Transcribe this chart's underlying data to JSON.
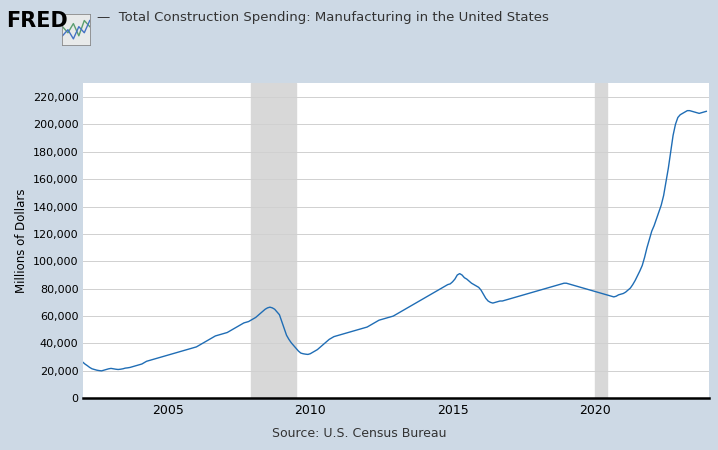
{
  "title": "Total Construction Spending: Manufacturing in the United States",
  "ylabel": "Millions of Dollars",
  "source": "Source: U.S. Census Bureau",
  "line_color": "#1f6db5",
  "background_color": "#cdd9e5",
  "plot_bg_color": "#ffffff",
  "recession_color": "#d8d8d8",
  "recession_bands": [
    [
      2007.917,
      2009.5
    ]
  ],
  "recession_band2": [
    [
      2020.0,
      2020.417
    ]
  ],
  "ylim": [
    0,
    230000
  ],
  "yticks": [
    0,
    20000,
    40000,
    60000,
    80000,
    100000,
    120000,
    140000,
    160000,
    180000,
    200000,
    220000
  ],
  "xlim_start": 2002.0,
  "xlim_end": 2024.0,
  "xtick_years": [
    2005,
    2010,
    2015,
    2020
  ],
  "data": {
    "dates": [
      2002.0,
      2002.083,
      2002.167,
      2002.25,
      2002.333,
      2002.417,
      2002.5,
      2002.583,
      2002.667,
      2002.75,
      2002.833,
      2002.917,
      2003.0,
      2003.083,
      2003.167,
      2003.25,
      2003.333,
      2003.417,
      2003.5,
      2003.583,
      2003.667,
      2003.75,
      2003.833,
      2003.917,
      2004.0,
      2004.083,
      2004.167,
      2004.25,
      2004.333,
      2004.417,
      2004.5,
      2004.583,
      2004.667,
      2004.75,
      2004.833,
      2004.917,
      2005.0,
      2005.083,
      2005.167,
      2005.25,
      2005.333,
      2005.417,
      2005.5,
      2005.583,
      2005.667,
      2005.75,
      2005.833,
      2005.917,
      2006.0,
      2006.083,
      2006.167,
      2006.25,
      2006.333,
      2006.417,
      2006.5,
      2006.583,
      2006.667,
      2006.75,
      2006.833,
      2006.917,
      2007.0,
      2007.083,
      2007.167,
      2007.25,
      2007.333,
      2007.417,
      2007.5,
      2007.583,
      2007.667,
      2007.75,
      2007.833,
      2007.917,
      2008.0,
      2008.083,
      2008.167,
      2008.25,
      2008.333,
      2008.417,
      2008.5,
      2008.583,
      2008.667,
      2008.75,
      2008.833,
      2008.917,
      2009.0,
      2009.083,
      2009.167,
      2009.25,
      2009.333,
      2009.417,
      2009.5,
      2009.583,
      2009.667,
      2009.75,
      2009.833,
      2009.917,
      2010.0,
      2010.083,
      2010.167,
      2010.25,
      2010.333,
      2010.417,
      2010.5,
      2010.583,
      2010.667,
      2010.75,
      2010.833,
      2010.917,
      2011.0,
      2011.083,
      2011.167,
      2011.25,
      2011.333,
      2011.417,
      2011.5,
      2011.583,
      2011.667,
      2011.75,
      2011.833,
      2011.917,
      2012.0,
      2012.083,
      2012.167,
      2012.25,
      2012.333,
      2012.417,
      2012.5,
      2012.583,
      2012.667,
      2012.75,
      2012.833,
      2012.917,
      2013.0,
      2013.083,
      2013.167,
      2013.25,
      2013.333,
      2013.417,
      2013.5,
      2013.583,
      2013.667,
      2013.75,
      2013.833,
      2013.917,
      2014.0,
      2014.083,
      2014.167,
      2014.25,
      2014.333,
      2014.417,
      2014.5,
      2014.583,
      2014.667,
      2014.75,
      2014.833,
      2014.917,
      2015.0,
      2015.083,
      2015.167,
      2015.25,
      2015.333,
      2015.417,
      2015.5,
      2015.583,
      2015.667,
      2015.75,
      2015.833,
      2015.917,
      2016.0,
      2016.083,
      2016.167,
      2016.25,
      2016.333,
      2016.417,
      2016.5,
      2016.583,
      2016.667,
      2016.75,
      2016.833,
      2016.917,
      2017.0,
      2017.083,
      2017.167,
      2017.25,
      2017.333,
      2017.417,
      2017.5,
      2017.583,
      2017.667,
      2017.75,
      2017.833,
      2017.917,
      2018.0,
      2018.083,
      2018.167,
      2018.25,
      2018.333,
      2018.417,
      2018.5,
      2018.583,
      2018.667,
      2018.75,
      2018.833,
      2018.917,
      2019.0,
      2019.083,
      2019.167,
      2019.25,
      2019.333,
      2019.417,
      2019.5,
      2019.583,
      2019.667,
      2019.75,
      2019.833,
      2019.917,
      2020.0,
      2020.083,
      2020.167,
      2020.25,
      2020.333,
      2020.417,
      2020.5,
      2020.583,
      2020.667,
      2020.75,
      2020.833,
      2020.917,
      2021.0,
      2021.083,
      2021.167,
      2021.25,
      2021.333,
      2021.417,
      2021.5,
      2021.583,
      2021.667,
      2021.75,
      2021.833,
      2021.917,
      2022.0,
      2022.083,
      2022.167,
      2022.25,
      2022.333,
      2022.417,
      2022.5,
      2022.583,
      2022.667,
      2022.75,
      2022.833,
      2022.917,
      2023.0,
      2023.083,
      2023.167,
      2023.25,
      2023.333,
      2023.417,
      2023.5,
      2023.583,
      2023.667,
      2023.75,
      2023.833,
      2023.917
    ],
    "values": [
      26500,
      25000,
      23800,
      22500,
      21500,
      21000,
      20500,
      20200,
      20000,
      20500,
      21000,
      21500,
      21800,
      21500,
      21200,
      21000,
      21200,
      21500,
      22000,
      22200,
      22500,
      23000,
      23500,
      24000,
      24500,
      25000,
      26000,
      27000,
      27500,
      28000,
      28500,
      29000,
      29500,
      30000,
      30500,
      31000,
      31500,
      32000,
      32500,
      33000,
      33500,
      34000,
      34500,
      35000,
      35500,
      36000,
      36500,
      37000,
      37500,
      38500,
      39500,
      40500,
      41500,
      42500,
      43500,
      44500,
      45500,
      46000,
      46500,
      47000,
      47500,
      48000,
      49000,
      50000,
      51000,
      52000,
      53000,
      54000,
      55000,
      55500,
      56000,
      57000,
      58000,
      59000,
      60500,
      62000,
      63500,
      65000,
      66000,
      66500,
      66000,
      65000,
      63000,
      61000,
      56000,
      51000,
      46000,
      43000,
      40500,
      38500,
      36500,
      34500,
      33000,
      32500,
      32200,
      32000,
      32500,
      33500,
      34500,
      35500,
      37000,
      38500,
      40000,
      41500,
      43000,
      44000,
      45000,
      45500,
      46000,
      46500,
      47000,
      47500,
      48000,
      48500,
      49000,
      49500,
      50000,
      50500,
      51000,
      51500,
      52000,
      53000,
      54000,
      55000,
      56000,
      57000,
      57500,
      58000,
      58500,
      59000,
      59500,
      60000,
      61000,
      62000,
      63000,
      64000,
      65000,
      66000,
      67000,
      68000,
      69000,
      70000,
      71000,
      72000,
      73000,
      74000,
      75000,
      76000,
      77000,
      78000,
      79000,
      80000,
      81000,
      82000,
      83000,
      83500,
      85000,
      87000,
      90000,
      91000,
      90000,
      88000,
      87000,
      85500,
      84000,
      83000,
      82000,
      81000,
      79000,
      76000,
      73000,
      71000,
      70000,
      69500,
      70000,
      70500,
      71000,
      71000,
      71500,
      72000,
      72500,
      73000,
      73500,
      74000,
      74500,
      75000,
      75500,
      76000,
      76500,
      77000,
      77500,
      78000,
      78500,
      79000,
      79500,
      80000,
      80500,
      81000,
      81500,
      82000,
      82500,
      83000,
      83500,
      84000,
      84000,
      83500,
      83000,
      82500,
      82000,
      81500,
      81000,
      80500,
      80000,
      79500,
      79000,
      78500,
      78000,
      77500,
      77000,
      76500,
      76000,
      75500,
      75000,
      74500,
      74000,
      74500,
      75500,
      76000,
      76500,
      77500,
      79000,
      80500,
      83000,
      86000,
      89500,
      93000,
      97000,
      103000,
      110000,
      116000,
      122000,
      126000,
      131000,
      136000,
      141000,
      148000,
      158000,
      168000,
      180000,
      192000,
      200000,
      205000,
      207000,
      208000,
      209000,
      210000,
      210000,
      209500,
      209000,
      208500,
      208000,
      208500,
      209000,
      209500
    ]
  }
}
